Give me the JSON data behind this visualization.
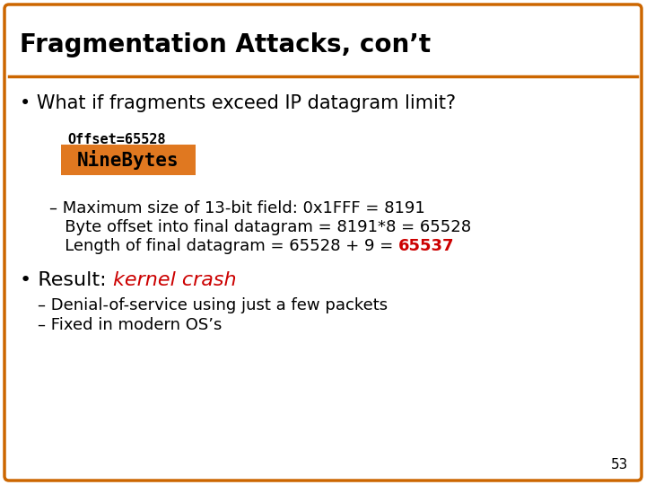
{
  "title": "Fragmentation Attacks, con’t",
  "title_fontsize": 20,
  "title_color": "#000000",
  "border_color": "#cc6600",
  "bg_color": "#ffffff",
  "slide_number": "53",
  "offset_label": "Offset=65528",
  "ninebytes_text": "NineBytes",
  "ninebytes_bg": "#e07820",
  "ninebytes_text_color": "#000000",
  "bullet1": "What if fragments exceed IP datagram limit?",
  "dash_line1": "– Maximum size of 13-bit field: 0x1FFF = 8191",
  "dash_line2": "   Byte offset into final datagram = 8191*8 = 65528",
  "dash_line3_prefix": "   Length of final datagram = 65528 + 9 = ",
  "dash_line3_highlight": "65537",
  "dash_line3_highlight_color": "#cc0000",
  "bullet2_highlight": "kernel crash",
  "bullet2_highlight_color": "#cc0000",
  "sub1": "– Denial-of-service using just a few packets",
  "sub2": "– Fixed in modern OS’s",
  "body_fontsize": 14,
  "mono_fontsize": 11,
  "nb_fontsize": 15,
  "result_fontsize": 16
}
